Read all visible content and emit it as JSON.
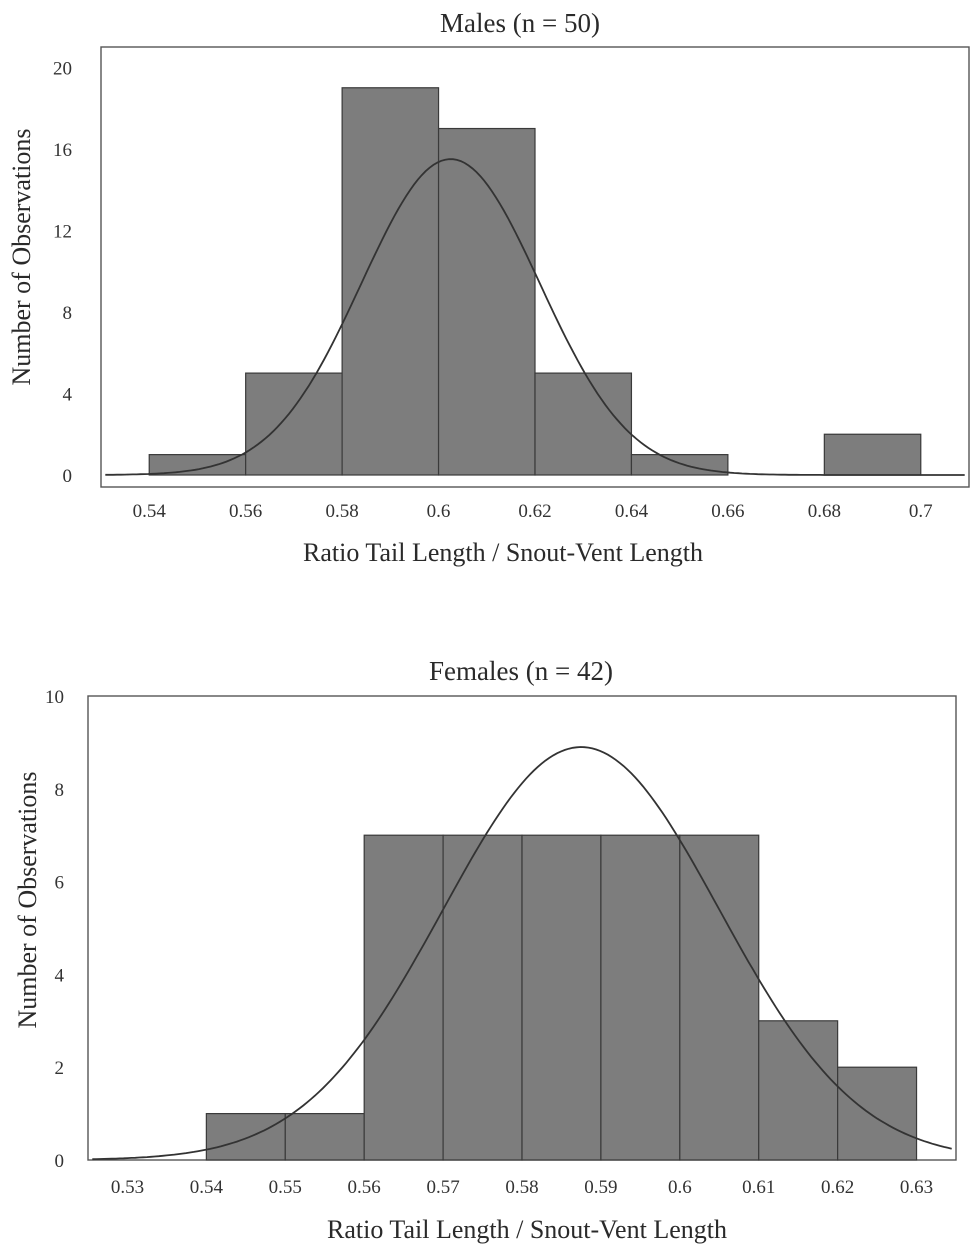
{
  "chart_data": [
    {
      "type": "bar",
      "title": "Males (n = 50)",
      "xlabel": "Ratio Tail Length / Snout-Vent Length",
      "ylabel": "Number of Observations",
      "xlim": [
        0.53,
        0.71
      ],
      "ylim": [
        0,
        21
      ],
      "xticks": [
        "0.54",
        "0.56",
        "0.58",
        "0.6",
        "0.62",
        "0.64",
        "0.66",
        "0.68",
        "0.7"
      ],
      "yticks": [
        "0",
        "4",
        "8",
        "12",
        "16",
        "20"
      ],
      "bins": [
        {
          "x0": 0.54,
          "x1": 0.56,
          "count": 1
        },
        {
          "x0": 0.56,
          "x1": 0.58,
          "count": 5
        },
        {
          "x0": 0.58,
          "x1": 0.6,
          "count": 19
        },
        {
          "x0": 0.6,
          "x1": 0.62,
          "count": 17
        },
        {
          "x0": 0.62,
          "x1": 0.64,
          "count": 5
        },
        {
          "x0": 0.64,
          "x1": 0.66,
          "count": 1
        },
        {
          "x0": 0.68,
          "x1": 0.7,
          "count": 2
        }
      ],
      "normal_curve": {
        "mean": 0.6025,
        "sd": 0.0185,
        "peak": 15.5
      }
    },
    {
      "type": "bar",
      "title": "Females (n = 42)",
      "xlabel": "Ratio Tail Length / Snout-Vent Length",
      "ylabel": "Number of Observations",
      "xlim": [
        0.525,
        0.635
      ],
      "ylim": [
        0,
        10
      ],
      "xticks": [
        "0.53",
        "0.54",
        "0.55",
        "0.56",
        "0.57",
        "0.58",
        "0.59",
        "0.6",
        "0.61",
        "0.62",
        "0.63"
      ],
      "yticks": [
        "0",
        "2",
        "4",
        "6",
        "8",
        "10"
      ],
      "bins": [
        {
          "x0": 0.54,
          "x1": 0.55,
          "count": 1
        },
        {
          "x0": 0.55,
          "x1": 0.56,
          "count": 1
        },
        {
          "x0": 0.56,
          "x1": 0.57,
          "count": 7
        },
        {
          "x0": 0.57,
          "x1": 0.58,
          "count": 7
        },
        {
          "x0": 0.58,
          "x1": 0.59,
          "count": 7
        },
        {
          "x0": 0.59,
          "x1": 0.6,
          "count": 7
        },
        {
          "x0": 0.6,
          "x1": 0.61,
          "count": 7
        },
        {
          "x0": 0.61,
          "x1": 0.62,
          "count": 3
        },
        {
          "x0": 0.62,
          "x1": 0.63,
          "count": 2
        }
      ],
      "normal_curve": {
        "mean": 0.5875,
        "sd": 0.0175,
        "peak": 8.9
      }
    }
  ]
}
